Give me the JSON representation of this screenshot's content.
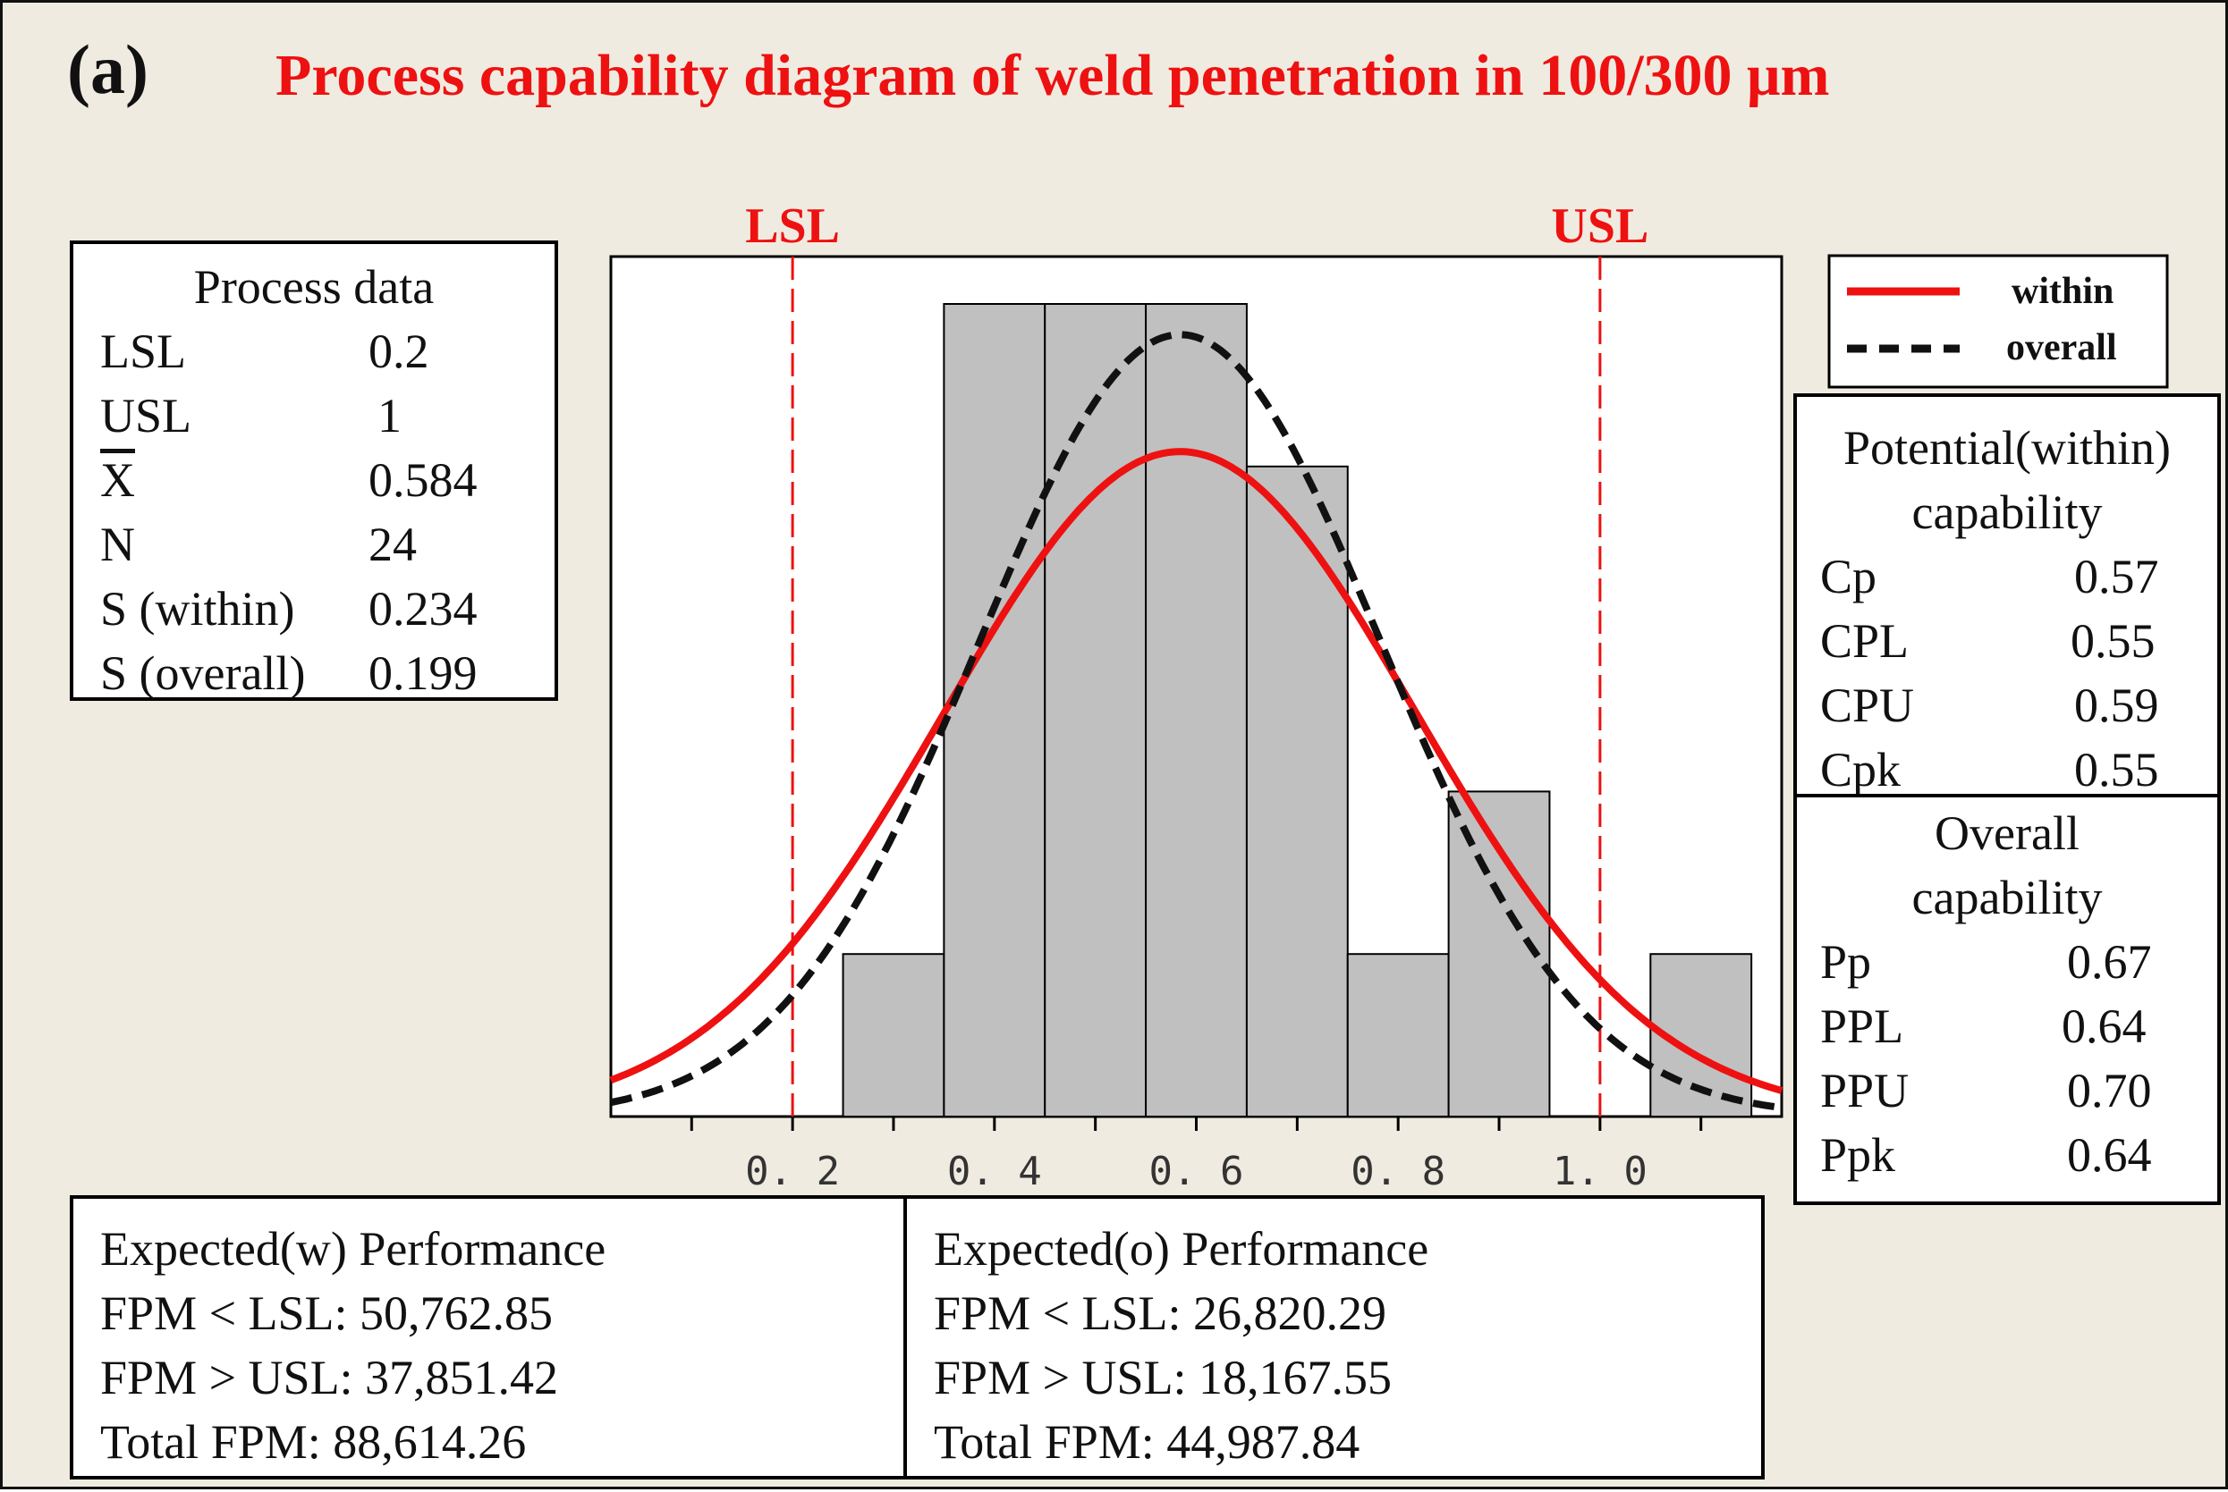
{
  "panel_label": "(a)",
  "chart_data": {
    "type": "histogram",
    "title": "Process capability diagram of  weld penetration in 100/300 μm",
    "xlim": [
      0.02,
      1.18
    ],
    "x_ticks": [
      0.2,
      0.4,
      0.6,
      0.8,
      1.0
    ],
    "x_tick_labels": [
      "0. 2",
      "0. 4",
      "0. 6",
      "0. 8",
      "1. 0"
    ],
    "bins": [
      {
        "from": 0.25,
        "to": 0.35,
        "count": 1
      },
      {
        "from": 0.35,
        "to": 0.45,
        "count": 5
      },
      {
        "from": 0.45,
        "to": 0.55,
        "count": 5
      },
      {
        "from": 0.55,
        "to": 0.65,
        "count": 5
      },
      {
        "from": 0.65,
        "to": 0.75,
        "count": 4
      },
      {
        "from": 0.75,
        "to": 0.85,
        "count": 1
      },
      {
        "from": 0.85,
        "to": 0.95,
        "count": 2
      },
      {
        "from": 1.05,
        "to": 1.15,
        "count": 1
      }
    ],
    "ylim": [
      0,
      5.2
    ],
    "spec_limits": {
      "lsl": 0.2,
      "usl": 1.0,
      "lsl_label": "LSL",
      "usl_label": "USL"
    },
    "curves": [
      {
        "name": "within",
        "mean": 0.584,
        "sd": 0.234,
        "style": "solid",
        "color": "#ee1111"
      },
      {
        "name": "overall",
        "mean": 0.584,
        "sd": 0.199,
        "style": "dashed",
        "color": "#111111"
      }
    ]
  },
  "process_data": {
    "title": "Process data",
    "rows": [
      {
        "key": "LSL",
        "value": "0.2"
      },
      {
        "key": "USL",
        "value": "1"
      },
      {
        "key": "X",
        "value": "0.584"
      },
      {
        "key": "N",
        "value": "24"
      },
      {
        "key": "S (within)",
        "value": "0.234"
      },
      {
        "key": "S (overall)",
        "value": "0.199"
      }
    ]
  },
  "potential": {
    "title_line1": "Potential(within)",
    "title_line2": "capability",
    "rows": [
      {
        "key": "Cp",
        "value": "0.57"
      },
      {
        "key": "CPL",
        "value": "0.55"
      },
      {
        "key": "CPU",
        "value": "0.59"
      },
      {
        "key": "Cpk",
        "value": "0.55"
      }
    ]
  },
  "overall_cap": {
    "title_line1": "Overall",
    "title_line2": "capability",
    "rows": [
      {
        "key": "Pp",
        "value": "0.67"
      },
      {
        "key": "PPL",
        "value": "0.64"
      },
      {
        "key": "PPU",
        "value": "0.70"
      },
      {
        "key": "Ppk",
        "value": "0.64"
      }
    ]
  },
  "expected_within": {
    "title": "Expected(w) Performance",
    "lines": [
      "FPM < LSL: 50,762.85",
      "FPM > USL: 37,851.42",
      "Total FPM: 88,614.26"
    ]
  },
  "expected_overall": {
    "title": "Expected(o) Performance",
    "lines": [
      "FPM < LSL: 26,820.29",
      "FPM > USL: 18,167.55",
      "Total FPM: 44,987.84"
    ]
  },
  "legend": {
    "within": "within",
    "overall": "overall"
  },
  "colors": {
    "spec": "#ee1111",
    "bar_fill": "#c0c0c0",
    "background": "#f0ebe0"
  }
}
